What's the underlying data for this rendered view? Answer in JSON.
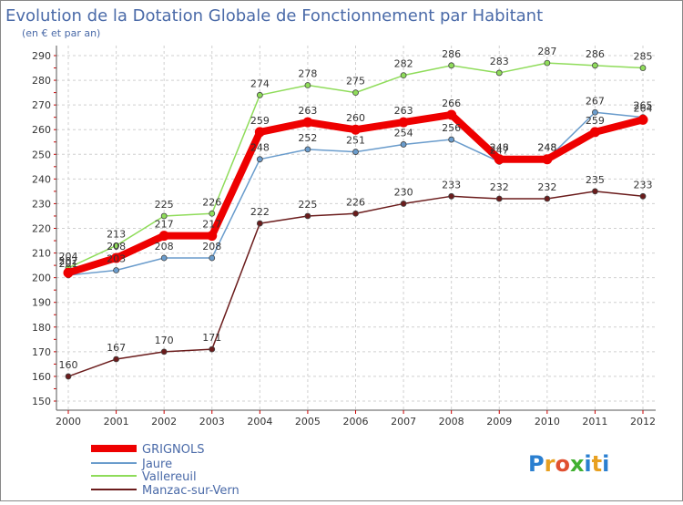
{
  "chart_data": {
    "type": "line",
    "title": "Evolution de la Dotation Globale de Fonctionnement par Habitant",
    "subtitle": "(en € et par an)",
    "xlabel": "",
    "ylabel": "",
    "ylim": [
      150,
      290
    ],
    "yticks": [
      150,
      160,
      170,
      180,
      190,
      200,
      210,
      220,
      230,
      240,
      250,
      260,
      270,
      280,
      290
    ],
    "grid": true,
    "legend_position": "bottom-left",
    "categories": [
      "2000",
      "2001",
      "2002",
      "2003",
      "2004",
      "2005",
      "2006",
      "2007",
      "2008",
      "2009",
      "2010",
      "2011",
      "2012"
    ],
    "series": [
      {
        "name": "Manzac-sur-Vern",
        "color": "#6b1c1c",
        "values": [
          160,
          167,
          170,
          171,
          222,
          225,
          226,
          230,
          233,
          232,
          232,
          235,
          233
        ]
      },
      {
        "name": "Vallereuil",
        "color": "#8fdc5a",
        "values": [
          204,
          213,
          225,
          226,
          274,
          278,
          275,
          282,
          286,
          283,
          287,
          286,
          285
        ]
      },
      {
        "name": "Jaure",
        "color": "#6a9ccc",
        "values": [
          201,
          203,
          208,
          208,
          248,
          252,
          251,
          254,
          256,
          247,
          248,
          267,
          265
        ]
      },
      {
        "name": "GRIGNOLS",
        "color": "#ee0000",
        "values": [
          202,
          208,
          217,
          217,
          259,
          263,
          260,
          263,
          266,
          248,
          248,
          259,
          264
        ]
      }
    ]
  },
  "legend": [
    {
      "name": "GRIGNOLS",
      "color": "#ee0000"
    },
    {
      "name": "Jaure",
      "color": "#6a9ccc"
    },
    {
      "name": "Vallereuil",
      "color": "#8fdc5a"
    },
    {
      "name": "Manzac-sur-Vern",
      "color": "#6b1c1c"
    }
  ],
  "logo": {
    "text": "Proxiti"
  }
}
